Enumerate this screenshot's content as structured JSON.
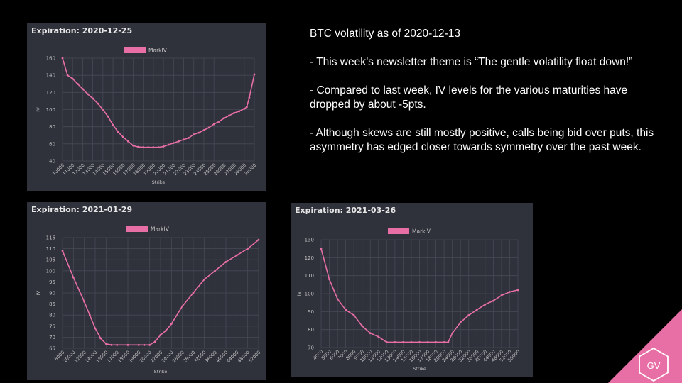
{
  "slide": {
    "title": "BTC volatility as of 2020-12-13",
    "bullets": [
      "- This week’s newsletter theme is “The gentle volatility float down!”",
      "- Compared to last week, IV levels for the various maturities have dropped by about -5pts.",
      "- Although skews are still mostly positive, calls being bid over puts, this asymmetry has edged closer towards symmetry over the past week."
    ],
    "logo_text": "GV",
    "colors": {
      "background": "#000000",
      "panel": "#2f313b",
      "series": "#e86fa6",
      "logo": "#e86fa6"
    }
  },
  "chart_data": [
    {
      "type": "line",
      "expiration_label": "Expiration: 2020-12-25",
      "legend": "MarkIV",
      "xlabel": "Strike",
      "ylabel": "IV",
      "yticks": [
        40,
        60,
        80,
        100,
        120,
        140,
        160
      ],
      "ylim": [
        40,
        160
      ],
      "categories": [
        "10000",
        "11000",
        "12000",
        "13000",
        "14000",
        "15000",
        "16000",
        "17000",
        "18000",
        "19000",
        "20000",
        "21000",
        "22000",
        "23000",
        "24000",
        "25000",
        "26000",
        "27000",
        "28000",
        "36000"
      ],
      "points": [
        {
          "x": "10000",
          "y": 160
        },
        {
          "x": "10500",
          "y": 140
        },
        {
          "x": "11000",
          "y": 136
        },
        {
          "x": "11500",
          "y": 130
        },
        {
          "x": "12000",
          "y": 124
        },
        {
          "x": "12500",
          "y": 118
        },
        {
          "x": "13000",
          "y": 113
        },
        {
          "x": "13500",
          "y": 107
        },
        {
          "x": "14000",
          "y": 100
        },
        {
          "x": "14500",
          "y": 92
        },
        {
          "x": "15000",
          "y": 82
        },
        {
          "x": "15500",
          "y": 74
        },
        {
          "x": "16000",
          "y": 68
        },
        {
          "x": "16500",
          "y": 63
        },
        {
          "x": "17000",
          "y": 58
        },
        {
          "x": "17500",
          "y": 56.5
        },
        {
          "x": "18000",
          "y": 56
        },
        {
          "x": "18500",
          "y": 56
        },
        {
          "x": "19000",
          "y": 56
        },
        {
          "x": "19500",
          "y": 56
        },
        {
          "x": "20000",
          "y": 57
        },
        {
          "x": "20500",
          "y": 59
        },
        {
          "x": "21000",
          "y": 61
        },
        {
          "x": "21500",
          "y": 63
        },
        {
          "x": "22000",
          "y": 65
        },
        {
          "x": "22500",
          "y": 67
        },
        {
          "x": "23000",
          "y": 71
        },
        {
          "x": "23500",
          "y": 73
        },
        {
          "x": "24000",
          "y": 76
        },
        {
          "x": "24500",
          "y": 79
        },
        {
          "x": "25000",
          "y": 83
        },
        {
          "x": "25500",
          "y": 86
        },
        {
          "x": "26000",
          "y": 90
        },
        {
          "x": "26500",
          "y": 93
        },
        {
          "x": "27000",
          "y": 96
        },
        {
          "x": "27500",
          "y": 98
        },
        {
          "x": "28000",
          "y": 101
        },
        {
          "x": "30000",
          "y": 103
        },
        {
          "x": "32000",
          "y": 114
        },
        {
          "x": "36000",
          "y": 141
        }
      ],
      "grid": true,
      "legend_position": "top-center"
    },
    {
      "type": "line",
      "expiration_label": "Expiration: 2021-01-29",
      "legend": "MarkIV",
      "xlabel": "Strike",
      "ylabel": "IV",
      "yticks": [
        65,
        70,
        75,
        80,
        85,
        90,
        95,
        100,
        105,
        110,
        115
      ],
      "ylim": [
        65,
        115
      ],
      "categories": [
        "8000",
        "10000",
        "12000",
        "14000",
        "16000",
        "17000",
        "18000",
        "19000",
        "20000",
        "22000",
        "24000",
        "26000",
        "28000",
        "32000",
        "36000",
        "40000",
        "44000",
        "48000",
        "52000"
      ],
      "points": [
        {
          "x": "8000",
          "y": 109
        },
        {
          "x": "10000",
          "y": 97
        },
        {
          "x": "12000",
          "y": 86
        },
        {
          "x": "13000",
          "y": 80
        },
        {
          "x": "14000",
          "y": 74
        },
        {
          "x": "15000",
          "y": 69.5
        },
        {
          "x": "16000",
          "y": 67
        },
        {
          "x": "16500",
          "y": 66.5
        },
        {
          "x": "17000",
          "y": 66.5
        },
        {
          "x": "18000",
          "y": 66.5
        },
        {
          "x": "19000",
          "y": 66.5
        },
        {
          "x": "19500",
          "y": 66.5
        },
        {
          "x": "20000",
          "y": 66.5
        },
        {
          "x": "21000",
          "y": 68
        },
        {
          "x": "22000",
          "y": 71
        },
        {
          "x": "23000",
          "y": 73
        },
        {
          "x": "24000",
          "y": 76
        },
        {
          "x": "26000",
          "y": 84
        },
        {
          "x": "28000",
          "y": 90
        },
        {
          "x": "32000",
          "y": 96
        },
        {
          "x": "36000",
          "y": 100
        },
        {
          "x": "40000",
          "y": 104
        },
        {
          "x": "44000",
          "y": 107
        },
        {
          "x": "48000",
          "y": 110
        },
        {
          "x": "52000",
          "y": 114
        }
      ],
      "grid": true,
      "legend_position": "top-center"
    },
    {
      "type": "line",
      "expiration_label": "Expiration: 2021-03-26",
      "legend": "MarkIV",
      "xlabel": "Strike",
      "ylabel": "IV",
      "yticks": [
        70,
        80,
        90,
        100,
        110,
        120,
        130
      ],
      "ylim": [
        70,
        130
      ],
      "categories": [
        "4000",
        "5000",
        "6000",
        "7000",
        "8000",
        "9000",
        "10000",
        "11000",
        "12000",
        "13000",
        "14000",
        "15000",
        "16000",
        "17000",
        "18000",
        "20000",
        "24000",
        "28000",
        "32000",
        "36000",
        "40000",
        "44000",
        "48000",
        "52000",
        "56000"
      ],
      "points": [
        {
          "x": "4000",
          "y": 125
        },
        {
          "x": "5000",
          "y": 108
        },
        {
          "x": "6000",
          "y": 97
        },
        {
          "x": "7000",
          "y": 91
        },
        {
          "x": "8000",
          "y": 88
        },
        {
          "x": "9000",
          "y": 82
        },
        {
          "x": "10000",
          "y": 78
        },
        {
          "x": "11000",
          "y": 76
        },
        {
          "x": "12000",
          "y": 73
        },
        {
          "x": "13000",
          "y": 73
        },
        {
          "x": "14000",
          "y": 73
        },
        {
          "x": "15000",
          "y": 73
        },
        {
          "x": "16000",
          "y": 73
        },
        {
          "x": "17000",
          "y": 73
        },
        {
          "x": "18000",
          "y": 73
        },
        {
          "x": "20000",
          "y": 73
        },
        {
          "x": "22000",
          "y": 73
        },
        {
          "x": "24000",
          "y": 78
        },
        {
          "x": "28000",
          "y": 84
        },
        {
          "x": "32000",
          "y": 88
        },
        {
          "x": "36000",
          "y": 91
        },
        {
          "x": "40000",
          "y": 94
        },
        {
          "x": "44000",
          "y": 96
        },
        {
          "x": "48000",
          "y": 99
        },
        {
          "x": "52000",
          "y": 101
        },
        {
          "x": "56000",
          "y": 102
        }
      ],
      "grid": true,
      "legend_position": "top-center"
    }
  ]
}
